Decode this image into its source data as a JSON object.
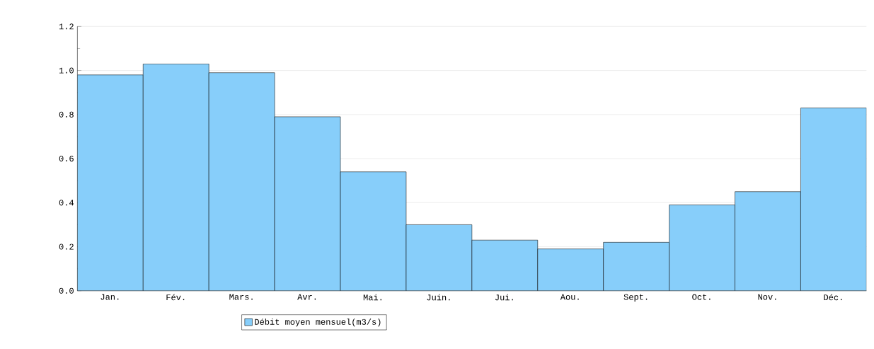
{
  "chart_data": {
    "type": "bar",
    "categories": [
      "Jan.",
      "Fév.",
      "Mars.",
      "Avr.",
      "Mai.",
      "Juin.",
      "Jui.",
      "Aou.",
      "Sept.",
      "Oct.",
      "Nov.",
      "Déc."
    ],
    "series": [
      {
        "name": "Débit moyen mensuel(m3/s)",
        "color": "#87cefa",
        "values": [
          0.98,
          1.03,
          0.99,
          0.79,
          0.54,
          0.3,
          0.23,
          0.19,
          0.22,
          0.39,
          0.45,
          0.83
        ]
      }
    ],
    "ylim": [
      0,
      1.2
    ],
    "yticks": [
      {
        "value": 0,
        "label": "0.0"
      },
      {
        "value": 0.2,
        "label": "0.2"
      },
      {
        "value": 0.4,
        "label": "0.4"
      },
      {
        "value": 0.6,
        "label": "0.6"
      },
      {
        "value": 0.8,
        "label": "0.8"
      },
      {
        "value": 1.0,
        "label": "1.0"
      },
      {
        "value": 1.2,
        "label": "1.2"
      }
    ],
    "grid": "y",
    "legend": "bottom"
  }
}
